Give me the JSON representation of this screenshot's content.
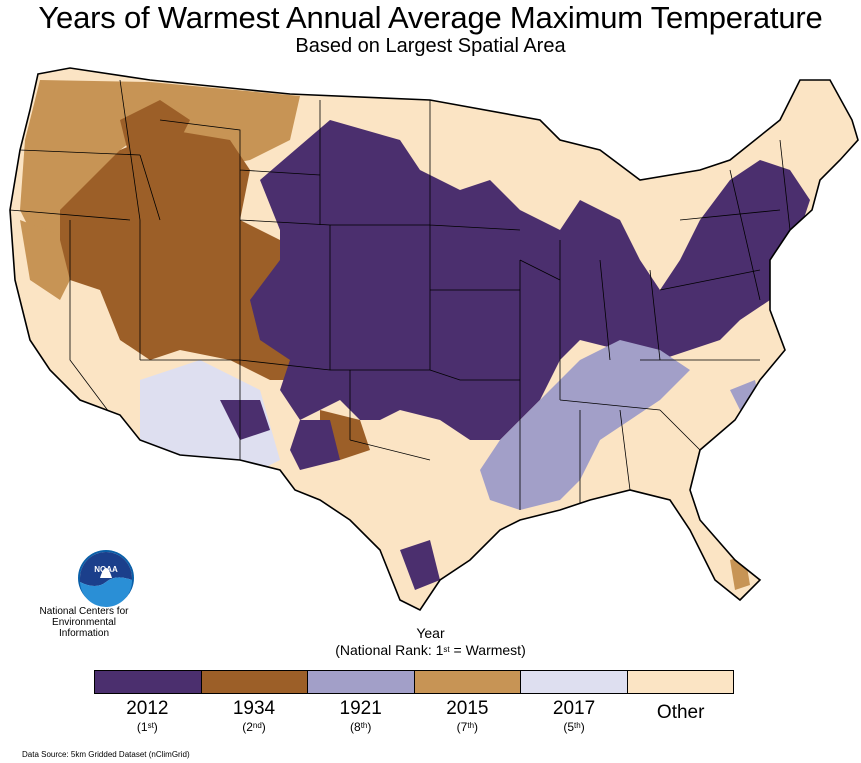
{
  "header": {
    "title": "Years of Warmest Annual Average Maximum Temperature",
    "subtitle": "Based on Largest Spatial Area"
  },
  "logo": {
    "text": "NOAA",
    "center_name": "National Centers for Environmental Information"
  },
  "legend": {
    "title": "Year",
    "subtitle_prefix": "(National Rank: 1",
    "subtitle_sup": "st",
    "subtitle_suffix": " = Warmest)",
    "items": [
      {
        "label": "2012",
        "rank": "1",
        "rank_sup": "st",
        "color": "#4b2f6e"
      },
      {
        "label": "1934",
        "rank": "2",
        "rank_sup": "nd",
        "color": "#9c5f28"
      },
      {
        "label": "1921",
        "rank": "8",
        "rank_sup": "th",
        "color": "#a29fc8"
      },
      {
        "label": "2015",
        "rank": "7",
        "rank_sup": "th",
        "color": "#c79455"
      },
      {
        "label": "2017",
        "rank": "5",
        "rank_sup": "th",
        "color": "#dedff0"
      },
      {
        "label": "Other",
        "rank": "",
        "rank_sup": "",
        "color": "#fbe4c4"
      }
    ]
  },
  "source": "Data Source: 5km Gridded Dataset (nClimGrid)"
}
